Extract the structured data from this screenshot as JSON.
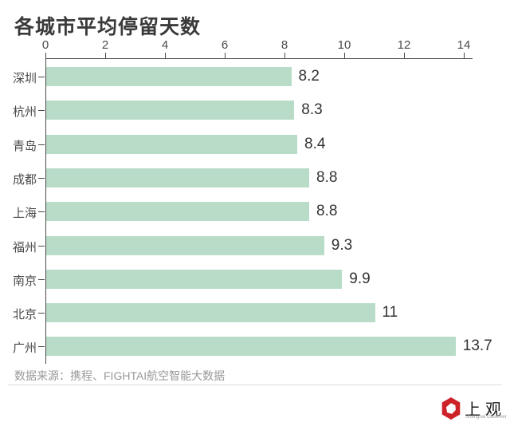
{
  "title": "各城市平均停留天数",
  "source": {
    "text": "数据来源：携程、FIGHTAI航空智能大数据"
  },
  "logo": {
    "cn": "上观",
    "en": "Shanghai Observer"
  },
  "colors": {
    "bar": "#b8dcc7",
    "axis": "#4a4a4a",
    "title": "#3a3a3a",
    "value_label": "#333333",
    "source_text": "#999999",
    "divider": "#dcdcdc",
    "logo_red": "#cd2328"
  },
  "chart_data": {
    "type": "bar",
    "orientation": "horizontal",
    "title": "各城市平均停留天数",
    "categories": [
      "深圳",
      "杭州",
      "青岛",
      "成都",
      "上海",
      "福州",
      "南京",
      "北京",
      "广州"
    ],
    "values": [
      8.2,
      8.3,
      8.4,
      8.8,
      8.8,
      9.3,
      9.9,
      11,
      13.7
    ],
    "value_labels": [
      "8.2",
      "8.3",
      "8.4",
      "8.8",
      "8.8",
      "9.3",
      "9.9",
      "11",
      "13.7"
    ],
    "xlabel": "",
    "ylabel": "",
    "xlim": [
      0,
      14
    ],
    "x_ticks": [
      0,
      2,
      4,
      6,
      8,
      10,
      12,
      14
    ],
    "axis_position": "top",
    "grid": false,
    "legend": false
  }
}
